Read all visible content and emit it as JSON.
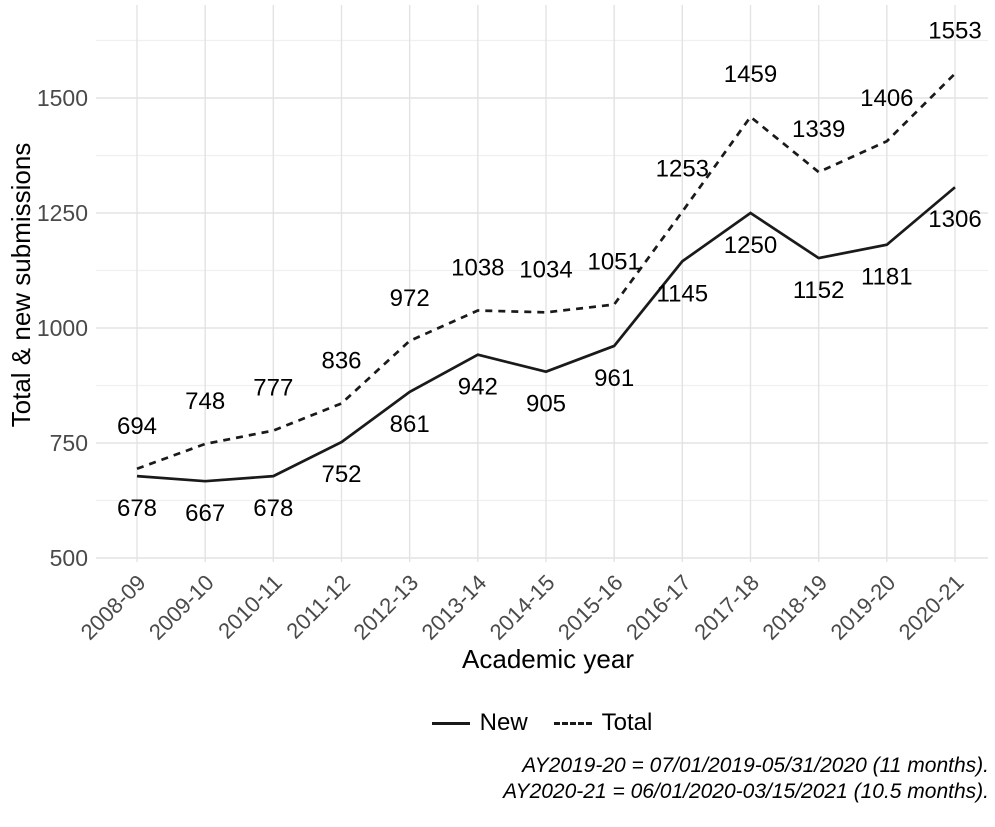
{
  "chart_data": {
    "type": "line",
    "title": "",
    "xlabel": "Academic year",
    "ylabel": "Total & new submissions",
    "categories": [
      "2008-09",
      "2009-10",
      "2010-11",
      "2011-12",
      "2012-13",
      "2013-14",
      "2014-15",
      "2015-16",
      "2016-17",
      "2017-18",
      "2018-19",
      "2019-20",
      "2020-21"
    ],
    "series": [
      {
        "name": "New",
        "line_style": "solid",
        "label_position": "below",
        "values": [
          678,
          667,
          678,
          752,
          861,
          942,
          905,
          961,
          1145,
          1250,
          1152,
          1181,
          1306
        ]
      },
      {
        "name": "Total",
        "line_style": "dashed",
        "label_position": "above",
        "values": [
          694,
          748,
          777,
          836,
          972,
          1038,
          1034,
          1051,
          1253,
          1459,
          1339,
          1406,
          1553
        ]
      }
    ],
    "y_ticks": [
      500,
      750,
      1000,
      1250,
      1500
    ],
    "ylim": [
      500,
      1625
    ],
    "grid": "major-and-minor, light gray, no panel border",
    "legend_position": "bottom-center",
    "footnotes": [
      "AY2019-20 = 07/01/2019-05/31/2020 (11 months).",
      "AY2020-21 = 06/01/2020-03/15/2021 (10.5 months)."
    ],
    "colors": {
      "line": "#1a1a1a",
      "grid_major": "#e3e3e3",
      "grid_minor": "#f0f0f0",
      "tick_label": "#4a4a4a",
      "text": "#000000"
    }
  }
}
